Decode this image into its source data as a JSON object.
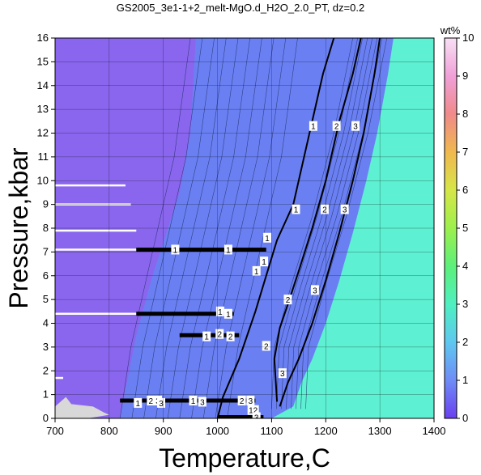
{
  "chart_data": {
    "type": "heatmap",
    "title": "GS2005_3e1-1+2_melt-MgO.d_H2O_2.0_PT, dz=0.2",
    "xlabel": "Temperature,C",
    "ylabel": "Pressure,kbar",
    "xlim": [
      700,
      1400
    ],
    "ylim": [
      0,
      16
    ],
    "xticks": [
      700,
      800,
      900,
      1000,
      1100,
      1200,
      1300,
      1400
    ],
    "yticks": [
      0,
      1,
      2,
      3,
      4,
      5,
      6,
      7,
      8,
      9,
      10,
      11,
      12,
      13,
      14,
      15,
      16
    ],
    "grid": true,
    "colorbar": {
      "label": "wt%",
      "range": [
        0,
        10
      ],
      "ticks": [
        0,
        1,
        2,
        3,
        4,
        5,
        6,
        7,
        8,
        9,
        10
      ],
      "colors": [
        "#6a3ff0",
        "#6e8cf6",
        "#5ec8f0",
        "#4ef0c0",
        "#5cf07a",
        "#9cf04c",
        "#d6e648",
        "#f0b84e",
        "#f08a8a",
        "#f0a0d8",
        "#f8e0f4"
      ]
    },
    "regions": {
      "low_T_color": "#8a66ee",
      "mid_color": "#6a80f2",
      "high_T_color": "#5ef0d2",
      "nodata_color": "#d8d8d8"
    },
    "contour_lines": [
      {
        "label": "1",
        "points": [
          [
            1000,
            0
          ],
          [
            1010,
            0.9
          ],
          [
            1040,
            2.5
          ],
          [
            1070,
            4.5
          ],
          [
            1090,
            6
          ],
          [
            1110,
            7.5
          ],
          [
            1140,
            9
          ],
          [
            1170,
            12
          ],
          [
            1195,
            14.5
          ],
          [
            1215,
            16
          ]
        ]
      },
      {
        "label": "2",
        "points": [
          [
            1110,
            0.7
          ],
          [
            1105,
            2.5
          ],
          [
            1115,
            3.8
          ],
          [
            1130,
            4.8
          ],
          [
            1150,
            6.2
          ],
          [
            1175,
            8
          ],
          [
            1200,
            10
          ],
          [
            1225,
            12.5
          ],
          [
            1250,
            14.5
          ],
          [
            1265,
            16
          ]
        ]
      },
      {
        "label": "3",
        "points": [
          [
            1115,
            0.5
          ],
          [
            1130,
            1.5
          ],
          [
            1150,
            2.5
          ],
          [
            1175,
            4
          ],
          [
            1200,
            5.8
          ],
          [
            1225,
            7.8
          ],
          [
            1250,
            10
          ],
          [
            1270,
            12
          ],
          [
            1290,
            14.5
          ],
          [
            1300,
            16
          ]
        ]
      }
    ],
    "labels": [
      {
        "text": "1",
        "x": 1177,
        "y": 12.3
      },
      {
        "text": "2",
        "x": 1220,
        "y": 12.3
      },
      {
        "text": "3",
        "x": 1255,
        "y": 12.3
      },
      {
        "text": "1",
        "x": 1145,
        "y": 8.8
      },
      {
        "text": "2",
        "x": 1198,
        "y": 8.8
      },
      {
        "text": "3",
        "x": 1235,
        "y": 8.8
      },
      {
        "text": "1",
        "x": 1092,
        "y": 7.6
      },
      {
        "text": "1",
        "x": 922,
        "y": 7.1
      },
      {
        "text": "1",
        "x": 1020,
        "y": 7.1
      },
      {
        "text": "1",
        "x": 1086,
        "y": 6.6
      },
      {
        "text": "1",
        "x": 1072,
        "y": 6.2
      },
      {
        "text": "2",
        "x": 1130,
        "y": 5.0
      },
      {
        "text": "3",
        "x": 1180,
        "y": 5.4
      },
      {
        "text": "1",
        "x": 1005,
        "y": 4.5
      },
      {
        "text": "1",
        "x": 1020,
        "y": 4.4
      },
      {
        "text": "1",
        "x": 980,
        "y": 3.45
      },
      {
        "text": "2",
        "x": 1004,
        "y": 3.55
      },
      {
        "text": "2",
        "x": 1024,
        "y": 3.45
      },
      {
        "text": "2",
        "x": 1090,
        "y": 3.05
      },
      {
        "text": "3",
        "x": 1120,
        "y": 1.9
      },
      {
        "text": "1",
        "x": 853,
        "y": 0.65
      },
      {
        "text": "2",
        "x": 877,
        "y": 0.75
      },
      {
        "text": "3",
        "x": 890,
        "y": 0.75
      },
      {
        "text": "3",
        "x": 896,
        "y": 0.65
      },
      {
        "text": "1",
        "x": 955,
        "y": 0.75
      },
      {
        "text": "3",
        "x": 972,
        "y": 0.7
      },
      {
        "text": "2",
        "x": 1045,
        "y": 0.75
      },
      {
        "text": "3",
        "x": 1061,
        "y": 0.75
      },
      {
        "text": "12",
        "x": 1066,
        "y": 0.35
      },
      {
        "text": "3",
        "x": 1072,
        "y": 0.05
      }
    ],
    "dashes": [
      {
        "x1": 850,
        "x2": 1090,
        "y": 7.1
      },
      {
        "x1": 850,
        "x2": 1030,
        "y": 4.4
      },
      {
        "x1": 930,
        "x2": 1040,
        "y": 3.5
      },
      {
        "x1": 820,
        "x2": 1070,
        "y": 0.75
      },
      {
        "x1": 1000,
        "x2": 1085,
        "y": 0.05
      }
    ]
  }
}
